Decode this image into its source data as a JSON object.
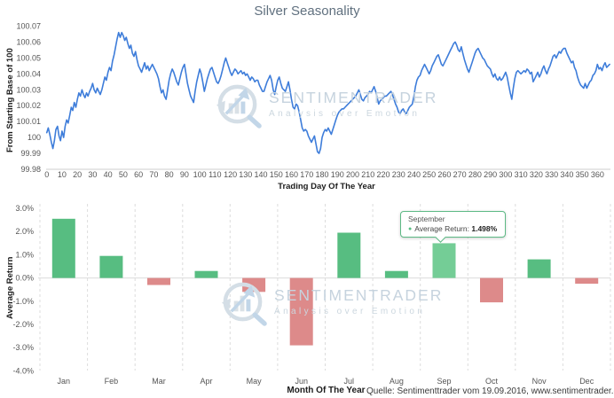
{
  "title": "Silver Seasonality",
  "tooltip": {
    "month": "September",
    "label": "Average Return:",
    "value": "1.498%"
  },
  "watermark": {
    "line1": "SENTIMENTRADER",
    "line2": "Analysis over Emotion"
  },
  "footer": {
    "month_axis_label": "Month Of The Year",
    "source": "Quelle: Sentimenttrader vom 19.09.2016, www.sentimentrader.com"
  },
  "colors": {
    "line": "#3e7dda",
    "bar_positive": "#57bd81",
    "bar_negative": "#dd8a8a",
    "bar_highlight": "#74cd96",
    "tooltip_border": "#5db985",
    "title_text": "#60707f",
    "axis_text": "#555555",
    "axis_title_text": "#1c1c1c",
    "grid": "#dcdcdc",
    "axis_line": "#cccccc",
    "watermark": "#c9d6e0"
  },
  "chart_data": [
    {
      "type": "line",
      "title": "Silver Seasonality",
      "xlabel": "Trading Day Of The Year",
      "ylabel": "From Starting Base of 100",
      "xlim": [
        0,
        368
      ],
      "ylim": [
        99.98,
        100.07
      ],
      "grid": false,
      "x_ticks": [
        0,
        10,
        20,
        30,
        40,
        50,
        60,
        70,
        80,
        90,
        100,
        110,
        120,
        130,
        140,
        150,
        160,
        170,
        180,
        190,
        200,
        210,
        220,
        230,
        240,
        250,
        260,
        270,
        280,
        290,
        300,
        310,
        320,
        330,
        340,
        350,
        360
      ],
      "y_tick_labels": [
        "100.07",
        "100.06",
        "100.05",
        "100.04",
        "100.03",
        "100.02",
        "100.01",
        "100",
        "99.99",
        "99.98"
      ],
      "y_tick_values": [
        100.07,
        100.06,
        100.05,
        100.04,
        100.03,
        100.02,
        100.01,
        100.0,
        99.99,
        99.98
      ],
      "start_day": 0,
      "day_step": 1,
      "values": [
        100.003,
        100.006,
        100.002,
        99.997,
        99.993,
        99.998,
        100.005,
        100.007,
        100.001,
        99.998,
        100.004,
        100.0,
        100.007,
        100.011,
        100.009,
        100.014,
        100.019,
        100.017,
        100.022,
        100.019,
        100.024,
        100.028,
        100.026,
        100.03,
        100.027,
        100.025,
        100.028,
        100.026,
        100.029,
        100.031,
        100.034,
        100.03,
        100.028,
        100.031,
        100.029,
        100.027,
        100.03,
        100.034,
        100.038,
        100.036,
        100.041,
        100.044,
        100.042,
        100.048,
        100.052,
        100.057,
        100.062,
        100.066,
        100.063,
        100.066,
        100.064,
        100.061,
        100.063,
        100.059,
        100.056,
        100.058,
        100.053,
        100.051,
        100.054,
        100.049,
        100.045,
        100.043,
        100.041,
        100.044,
        100.047,
        100.043,
        100.045,
        100.042,
        100.044,
        100.046,
        100.044,
        100.042,
        100.04,
        100.037,
        100.032,
        100.028,
        100.03,
        100.026,
        100.024,
        100.03,
        100.036,
        100.04,
        100.043,
        100.041,
        100.038,
        100.035,
        100.033,
        100.037,
        100.041,
        100.044,
        100.046,
        100.04,
        100.034,
        100.03,
        100.026,
        100.024,
        100.022,
        100.029,
        100.035,
        100.039,
        100.043,
        100.04,
        100.035,
        100.029,
        100.033,
        100.037,
        100.04,
        100.043,
        100.044,
        100.041,
        100.038,
        100.035,
        100.034,
        100.036,
        100.039,
        100.043,
        100.047,
        100.05,
        100.047,
        100.044,
        100.041,
        100.039,
        100.041,
        100.043,
        100.042,
        100.04,
        100.041,
        100.042,
        100.04,
        100.041,
        100.039,
        100.04,
        100.038,
        100.036,
        100.038,
        100.037,
        100.035,
        100.036,
        100.036,
        100.033,
        100.031,
        100.029,
        100.029,
        100.032,
        100.035,
        100.037,
        100.039,
        100.036,
        100.03,
        100.027,
        100.032,
        100.036,
        100.038,
        100.034,
        100.031,
        100.03,
        100.029,
        100.032,
        100.035,
        100.03,
        100.024,
        100.019,
        100.018,
        100.021,
        100.02,
        100.016,
        100.011,
        100.006,
        100.004,
        100.005,
        100.004,
        100.001,
        99.999,
        99.997,
        99.999,
        100.001,
        99.996,
        99.991,
        99.99,
        99.993,
        100.0,
        100.003,
        100.005,
        100.004,
        100.006,
        100.004,
        100.002,
        100.005,
        100.008,
        100.011,
        100.014,
        100.016,
        100.017,
        100.018,
        100.018,
        100.019,
        100.02,
        100.021,
        100.022,
        100.023,
        100.024,
        100.025,
        100.026,
        100.028,
        100.03,
        100.027,
        100.024,
        100.023,
        100.025,
        100.026,
        100.027,
        100.029,
        100.028,
        100.03,
        100.032,
        100.029,
        100.025,
        100.021,
        100.023,
        100.024,
        100.025,
        100.026,
        100.026,
        100.027,
        100.028,
        100.029,
        100.027,
        100.024,
        100.021,
        100.019,
        100.016,
        100.015,
        100.017,
        100.018,
        100.016,
        100.015,
        100.017,
        100.019,
        100.02,
        100.021,
        100.026,
        100.032,
        100.036,
        100.038,
        100.039,
        100.042,
        100.044,
        100.046,
        100.044,
        100.042,
        100.04,
        100.042,
        100.045,
        100.047,
        100.049,
        100.051,
        100.052,
        100.049,
        100.046,
        100.045,
        100.047,
        100.049,
        100.051,
        100.053,
        100.055,
        100.057,
        100.059,
        100.06,
        100.058,
        100.055,
        100.054,
        100.057,
        100.053,
        100.049,
        100.046,
        100.043,
        100.041,
        100.044,
        100.047,
        100.05,
        100.053,
        100.055,
        100.056,
        100.054,
        100.052,
        100.05,
        100.049,
        100.047,
        100.045,
        100.044,
        100.043,
        100.04,
        100.038,
        100.04,
        100.037,
        100.036,
        100.038,
        100.036,
        100.037,
        100.039,
        100.041,
        100.038,
        100.033,
        100.028,
        100.024,
        100.031,
        100.037,
        100.041,
        100.042,
        100.041,
        100.04,
        100.041,
        100.042,
        100.041,
        100.043,
        100.042,
        100.04,
        100.041,
        100.035,
        100.037,
        100.039,
        100.041,
        100.038,
        100.04,
        100.043,
        100.045,
        100.042,
        100.04,
        100.043,
        100.045,
        100.048,
        100.051,
        100.052,
        100.05,
        100.052,
        100.054,
        100.053,
        100.055,
        100.056,
        100.056,
        100.053,
        100.051,
        100.049,
        100.047,
        100.048,
        100.044,
        100.042,
        100.038,
        100.035,
        100.033,
        100.032,
        100.031,
        100.034,
        100.031,
        100.033,
        100.035,
        100.036,
        100.039,
        100.04,
        100.042,
        100.046,
        100.043,
        100.044,
        100.042,
        100.045,
        100.047,
        100.044,
        100.045,
        100.046
      ]
    },
    {
      "type": "bar",
      "categories": [
        "Jan",
        "Feb",
        "Mar",
        "Apr",
        "May",
        "Jun",
        "Jul",
        "Aug",
        "Sep",
        "Oct",
        "Nov",
        "Dec"
      ],
      "values": [
        2.55,
        0.95,
        -0.3,
        0.3,
        -0.6,
        -2.9,
        1.95,
        0.3,
        1.498,
        -1.05,
        0.8,
        -0.25
      ],
      "highlighted_category": "Sep",
      "xlabel": "Month Of The Year",
      "ylabel": "Average Return",
      "ylim": [
        -4,
        3
      ],
      "grid": "vertical-dashed",
      "y_tick_labels": [
        "3.0%",
        "2.0%",
        "1.0%",
        "0.0%",
        "-1.0%",
        "-2.0%",
        "-3.0%",
        "-4.0%"
      ],
      "y_tick_values": [
        3,
        2,
        1,
        0,
        -1,
        -2,
        -3,
        -4
      ]
    }
  ]
}
